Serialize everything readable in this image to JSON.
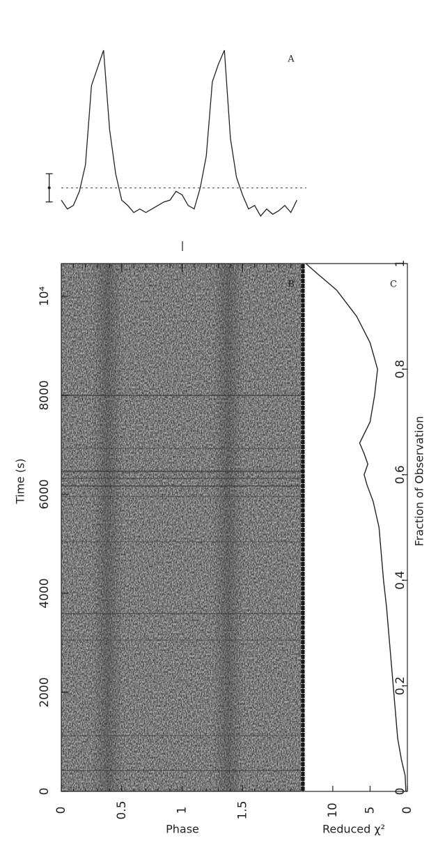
{
  "chart_data": [
    {
      "type": "profile",
      "label": "A",
      "color": "#222",
      "x": [
        0,
        0.05,
        0.1,
        0.15,
        0.2,
        0.25,
        0.3,
        0.35,
        0.4,
        0.45,
        0.5,
        0.55,
        0.6,
        0.65,
        0.7,
        0.75,
        0.8,
        0.85,
        0.9,
        0.95,
        1.0,
        1.05,
        1.1,
        1.15,
        1.2,
        1.25,
        1.3,
        1.35,
        1.4,
        1.45,
        1.5,
        1.55,
        1.6,
        1.65,
        1.7,
        1.75,
        1.8,
        1.85,
        1.9,
        1.95
      ],
      "values": [
        0.15,
        0.1,
        0.12,
        0.2,
        0.35,
        0.8,
        0.9,
        1.0,
        0.55,
        0.3,
        0.15,
        0.12,
        0.08,
        0.1,
        0.08,
        0.1,
        0.12,
        0.14,
        0.15,
        0.2,
        0.18,
        0.12,
        0.1,
        0.22,
        0.4,
        0.82,
        0.92,
        1.0,
        0.5,
        0.28,
        0.18,
        0.1,
        0.12,
        0.06,
        0.1,
        0.07,
        0.09,
        0.12,
        0.08,
        0.15
      ],
      "xlim": [
        0,
        2
      ],
      "ylim": [
        0,
        1
      ],
      "reference": 0.22,
      "error_bar": {
        "x": -0.1,
        "value": 0.22,
        "error": 0.08
      }
    },
    {
      "type": "heatmap",
      "label": "B",
      "xlabel": "Phase",
      "ylabel": "Time (s)",
      "xlim": [
        0,
        2
      ],
      "xticks": [
        0,
        0.5,
        1,
        1.5
      ],
      "ylim": [
        0,
        10660
      ],
      "yticks": [
        0,
        2000,
        4000,
        6000,
        8000,
        {
          "value": 10000,
          "label": "10⁴"
        }
      ]
    },
    {
      "type": "line",
      "label": "C",
      "orientation": "vertical",
      "color": "#222",
      "xlabel": "Fraction of Observation",
      "ylabel": "Reduced χ²",
      "x": [
        0,
        0.03,
        0.06,
        0.1,
        0.15,
        0.2,
        0.25,
        0.3,
        0.35,
        0.4,
        0.45,
        0.5,
        0.55,
        0.58,
        0.6,
        0.62,
        0.64,
        0.66,
        0.7,
        0.75,
        0.8,
        0.85,
        0.9,
        0.95,
        0.98,
        1.0
      ],
      "values": [
        0.2,
        0.3,
        0.8,
        1.3,
        1.6,
        1.9,
        2.2,
        2.5,
        2.8,
        3.2,
        3.5,
        3.8,
        4.6,
        5.4,
        5.8,
        5.3,
        5.8,
        6.4,
        5.0,
        4.4,
        4.0,
        5.0,
        6.8,
        9.5,
        12.0,
        13.6
      ],
      "xlim": [
        0,
        1
      ],
      "xticks": [
        0,
        0.2,
        0.4,
        0.6,
        0.8,
        1
      ],
      "ylim": [
        14,
        0
      ],
      "yticks": [
        10,
        5,
        0
      ]
    }
  ]
}
